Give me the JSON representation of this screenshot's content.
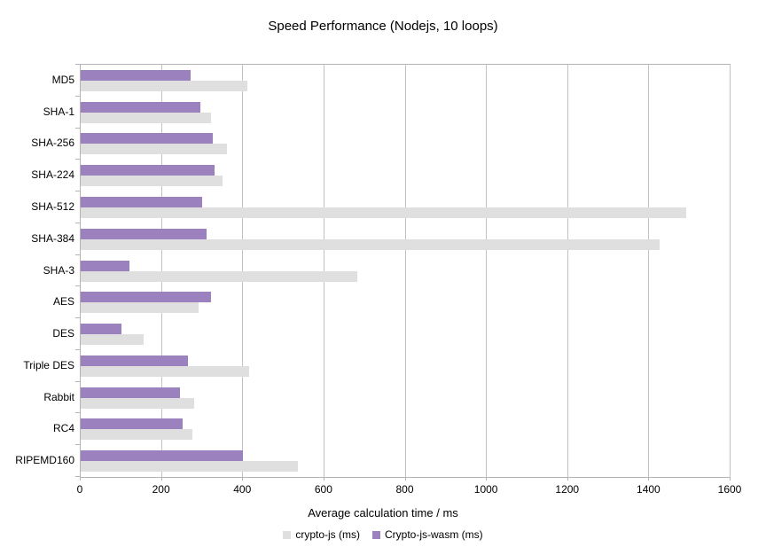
{
  "chart_data": {
    "type": "bar",
    "orientation": "horizontal",
    "title": "Speed Performance (Nodejs, 10 loops)",
    "xlabel": "Average calculation time / ms",
    "xlim": [
      0,
      1600
    ],
    "xticks": [
      0,
      200,
      400,
      600,
      800,
      1000,
      1200,
      1400,
      1600
    ],
    "grid": true,
    "legend_position": "bottom",
    "categories": [
      "MD5",
      "SHA-1",
      "SHA-256",
      "SHA-224",
      "SHA-512",
      "SHA-384",
      "SHA-3",
      "AES",
      "DES",
      "Triple DES",
      "Rabbit",
      "RC4",
      "RIPEMD160"
    ],
    "series": [
      {
        "name": "crypto-js (ms)",
        "color": "#dfdfdf",
        "values": [
          410,
          320,
          360,
          350,
          1490,
          1425,
          680,
          290,
          155,
          415,
          280,
          275,
          535
        ]
      },
      {
        "name": "Crypto-js-wasm (ms)",
        "color": "#9b82bf",
        "values": [
          270,
          295,
          325,
          330,
          300,
          310,
          120,
          320,
          100,
          265,
          245,
          250,
          400
        ]
      }
    ],
    "group_draw_order_top_to_bottom": [
      "Crypto-js-wasm (ms)",
      "crypto-js (ms)"
    ]
  },
  "colors": {
    "background": "#ffffff",
    "gridline": "#c2c2c2",
    "axis_line": "#b3b3b3",
    "text": "#000000"
  }
}
